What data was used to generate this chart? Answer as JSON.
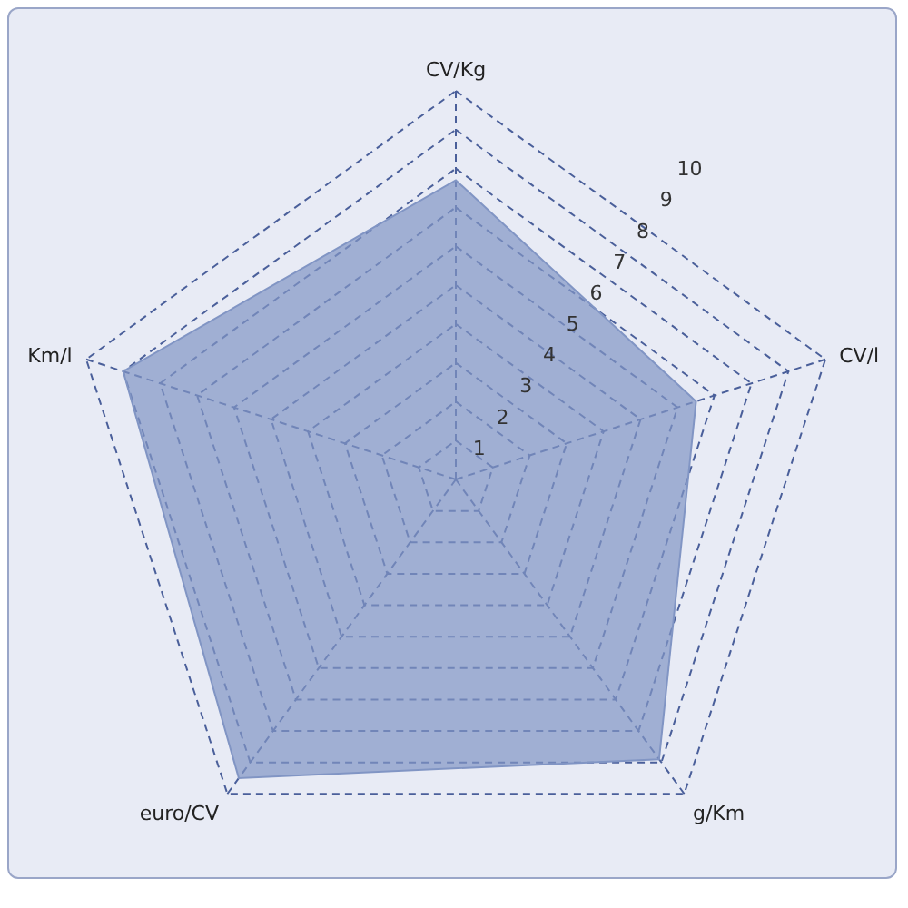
{
  "chart_data": {
    "type": "radar",
    "categories": [
      "CV/Kg",
      "CV/l",
      "g/Km",
      "euro/CV",
      "Km/l"
    ],
    "series": [
      {
        "color": "#8195c4",
        "values": [
          7.7,
          6.5,
          8.9,
          9.5,
          9.0
        ]
      }
    ],
    "ylim": [
      0,
      10
    ],
    "yticks": [
      1,
      2,
      3,
      4,
      5,
      6,
      7,
      8,
      9,
      10
    ],
    "grid": true,
    "legend": false,
    "marker": "none"
  }
}
